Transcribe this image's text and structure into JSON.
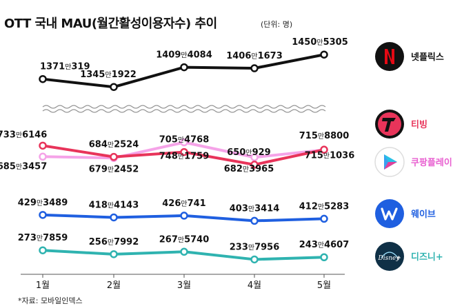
{
  "title": "OTT 국내 MAU(월간활성이용자수) 추이",
  "unit_note": "(단위: 명)",
  "source": "*자료: 모바일인덱스",
  "colors": {
    "넷플릭스": "#111111",
    "티빙": "#e8345a",
    "쿠팡플레이": "#f5a3e8",
    "웨이브": "#1f5fe0",
    "디즈니+": "#2fb3b0"
  },
  "legend_icons": {
    "넷플릭스": "netflix-logo-icon",
    "티빙": "tving-logo-icon",
    "쿠팡플레이": "coupang-play-logo-icon",
    "웨이브": "wavve-logo-icon",
    "디즈니+": "disney-plus-logo-icon"
  },
  "chart_data": {
    "type": "line",
    "title": "OTT 국내 MAU(월간활성이용자수) 추이",
    "unit": "명",
    "categories": [
      "1월",
      "2월",
      "3월",
      "4월",
      "5월"
    ],
    "axis_break": "between 넷플릭스 and the other series",
    "grid": false,
    "legend": "right",
    "series": [
      {
        "name": "넷플릭스",
        "values": [
          13710319,
          13451922,
          14094084,
          14061673,
          14505305
        ],
        "labels": [
          "1371만319",
          "1345만1922",
          "1409만4084",
          "1406만1673",
          "1450만5305"
        ]
      },
      {
        "name": "티빙",
        "values": [
          7336146,
          6842524,
          7054768,
          6500929,
          7158800
        ],
        "labels": [
          "733만6146",
          "684만2524",
          "705만4768",
          "650만929",
          "715만8800"
        ]
      },
      {
        "name": "쿠팡플레이",
        "values": [
          6853457,
          6792452,
          7481759,
          6823965,
          7151036
        ],
        "labels": [
          "685만3457",
          "679만2452",
          "748만1759",
          "682만3965",
          "715만1036"
        ]
      },
      {
        "name": "웨이브",
        "values": [
          4293489,
          4184143,
          4260741,
          4033414,
          4125283
        ],
        "labels": [
          "429만3489",
          "418만4143",
          "426만741",
          "403만3414",
          "412만5283"
        ]
      },
      {
        "name": "디즈니+",
        "values": [
          2737859,
          2567992,
          2675740,
          2337956,
          2434607
        ],
        "labels": [
          "273만7859",
          "256만7992",
          "267만5740",
          "233만7956",
          "243만4607"
        ]
      }
    ]
  }
}
